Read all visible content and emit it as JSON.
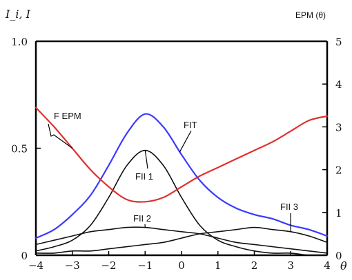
{
  "chart_data": {
    "type": "line",
    "left_axis_label": "I_i, I",
    "right_axis_label": "EPM (θ)",
    "x_axis_label": "θ",
    "x_range": [
      -4,
      4
    ],
    "x_ticks": [
      "-4",
      "-3",
      "-2",
      "-1",
      "0",
      "1",
      "2",
      "3",
      "4"
    ],
    "y_left_range": [
      0,
      1.0
    ],
    "y_left_ticks": [
      "0",
      "0.5",
      "1.0"
    ],
    "y_right_range": [
      0,
      5
    ],
    "y_right_ticks": [
      "0",
      "1",
      "2",
      "3",
      "4",
      "5"
    ],
    "grid": false,
    "series": [
      {
        "name": "FIT",
        "axis": "left",
        "color": "#3a3aff",
        "x": [
          -4,
          -3.5,
          -3,
          -2.5,
          -2,
          -1.5,
          -1,
          -0.5,
          0,
          0.5,
          1,
          1.5,
          2,
          2.5,
          3,
          3.5,
          4
        ],
        "y": [
          0.08,
          0.12,
          0.19,
          0.28,
          0.42,
          0.57,
          0.66,
          0.6,
          0.47,
          0.35,
          0.27,
          0.22,
          0.19,
          0.17,
          0.14,
          0.12,
          0.09
        ]
      },
      {
        "name": "FII 1",
        "axis": "left",
        "color": "#111111",
        "x": [
          -4,
          -3.5,
          -3,
          -2.5,
          -2,
          -1.5,
          -1,
          -0.5,
          0,
          0.5,
          1,
          1.5,
          2,
          2.5,
          3,
          3.5,
          4
        ],
        "y": [
          0.02,
          0.04,
          0.07,
          0.14,
          0.27,
          0.42,
          0.49,
          0.42,
          0.27,
          0.14,
          0.07,
          0.04,
          0.02,
          0.01,
          0.01,
          0.0,
          0.0
        ]
      },
      {
        "name": "FII 2",
        "axis": "left",
        "color": "#111111",
        "x": [
          -4,
          -3.5,
          -3,
          -2.5,
          -2,
          -1.5,
          -1,
          -0.5,
          0,
          0.5,
          1,
          1.5,
          2,
          2.5,
          3,
          3.5,
          4
        ],
        "y": [
          0.05,
          0.07,
          0.09,
          0.11,
          0.12,
          0.13,
          0.13,
          0.12,
          0.11,
          0.1,
          0.08,
          0.06,
          0.05,
          0.04,
          0.03,
          0.02,
          0.01
        ]
      },
      {
        "name": "FII 3",
        "axis": "left",
        "color": "#111111",
        "x": [
          -4,
          -3.5,
          -3,
          -2.5,
          -2,
          -1.5,
          -1,
          -0.5,
          0,
          0.5,
          1,
          1.5,
          2,
          2.5,
          3,
          3.5,
          4
        ],
        "y": [
          0.01,
          0.01,
          0.02,
          0.02,
          0.03,
          0.04,
          0.05,
          0.06,
          0.08,
          0.1,
          0.11,
          0.12,
          0.13,
          0.12,
          0.11,
          0.09,
          0.06
        ]
      },
      {
        "name": "F EPM",
        "axis": "right",
        "color": "#e03030",
        "x": [
          -4,
          -3.5,
          -3,
          -2.5,
          -2,
          -1.5,
          -1,
          -0.5,
          0,
          0.5,
          1,
          1.5,
          2,
          2.5,
          3,
          3.5,
          4
        ],
        "y": [
          3.45,
          3.0,
          2.5,
          2.0,
          1.6,
          1.3,
          1.25,
          1.35,
          1.6,
          1.85,
          2.05,
          2.25,
          2.45,
          2.65,
          2.9,
          3.15,
          3.25
        ]
      }
    ],
    "annotations": [
      {
        "text": "F EPM",
        "series": "F EPM",
        "at_x": -3.0
      },
      {
        "text": "FIT",
        "series": "FIT",
        "at_x": -0.05
      },
      {
        "text": "FII 1",
        "series": "FII 1",
        "at_x": -1.0
      },
      {
        "text": "FII 2",
        "series": "FII 2",
        "at_x": -1.0
      },
      {
        "text": "FII 3",
        "series": "FII 3",
        "at_x": 3.0
      }
    ]
  }
}
